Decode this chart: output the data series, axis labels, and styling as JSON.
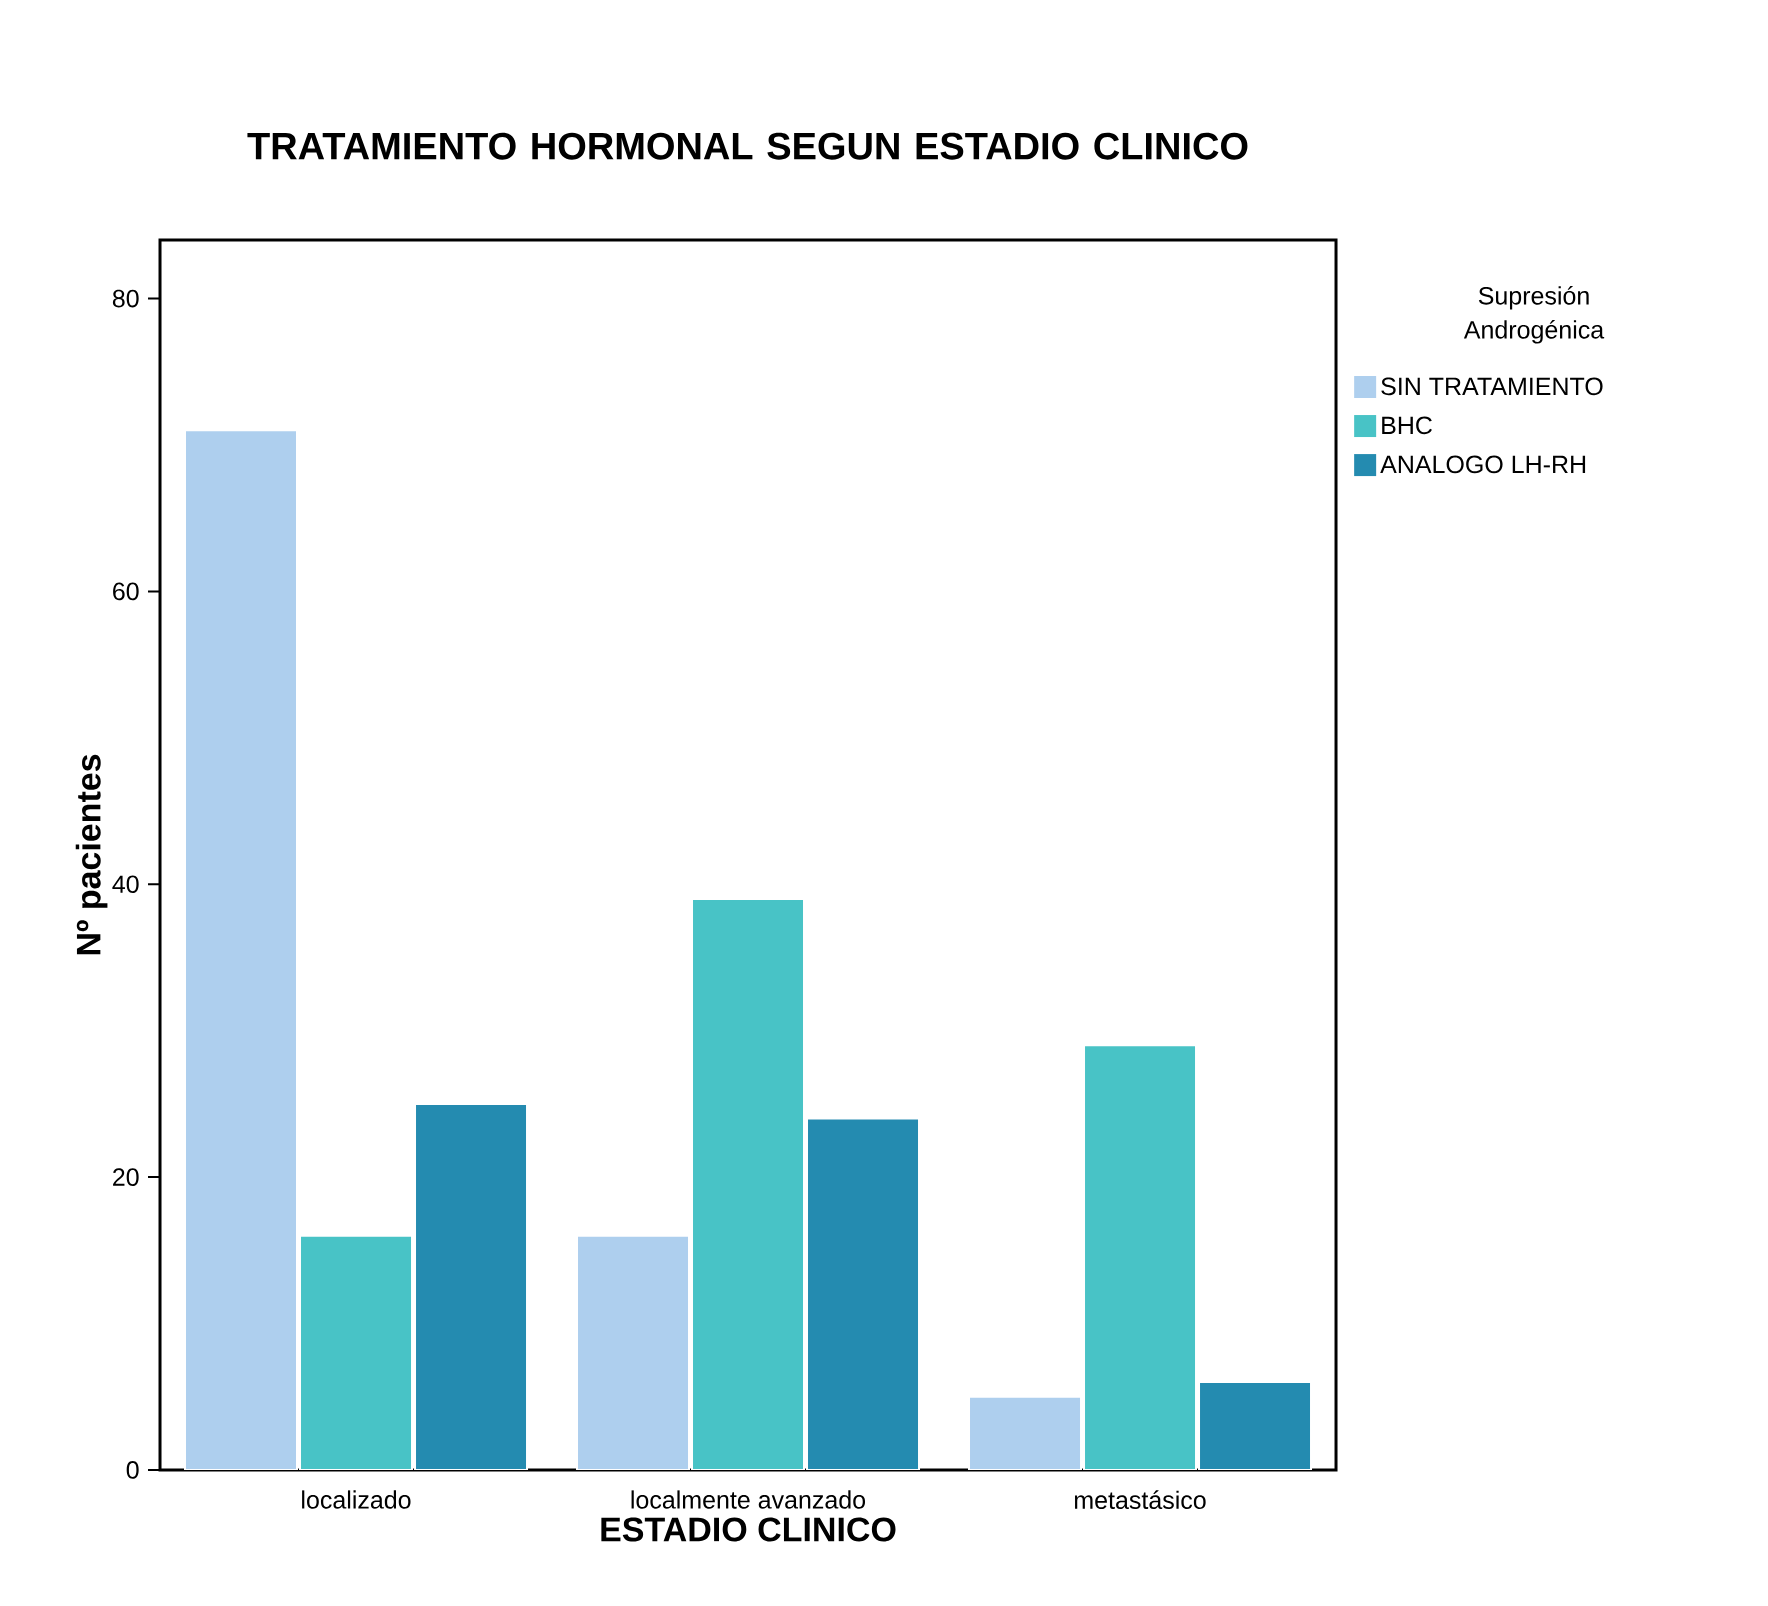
{
  "chart_data": {
    "type": "bar",
    "title": "TRATAMIENTO HORMONAL SEGUN ESTADIO CLINICO",
    "xlabel": "ESTADIO CLINICO",
    "ylabel": "Nº pacientes",
    "legend_title": "Supresión Androgénica",
    "categories": [
      "localizado",
      "localmente avanzado",
      "metastásico"
    ],
    "series": [
      {
        "name": "SIN TRATAMIENTO",
        "color": "#aecfee",
        "values": [
          71,
          16,
          5
        ]
      },
      {
        "name": "BHC",
        "color": "#48c3c6",
        "values": [
          16,
          39,
          29
        ]
      },
      {
        "name": "ANALOGO LH-RH",
        "color": "#248bb0",
        "values": [
          25,
          24,
          6
        ]
      }
    ],
    "ylim": [
      0,
      84
    ],
    "yticks": [
      0,
      20,
      40,
      60,
      80
    ],
    "grid": false,
    "legend": "top right"
  }
}
